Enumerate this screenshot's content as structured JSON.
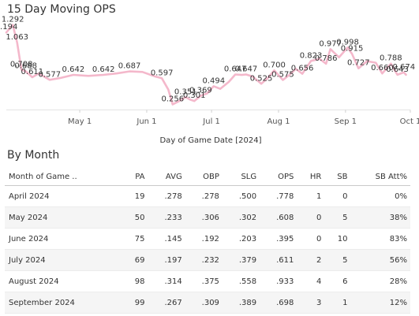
{
  "chart_data": {
    "type": "line",
    "title": "15 Day Moving OPS",
    "xlabel": "Day of Game Date [2024]",
    "ylabel": "",
    "x_tick_labels": [
      "May 1",
      "Jun 1",
      "Jul 1",
      "Aug 1",
      "Sep 1",
      "Oct 1"
    ],
    "x_tick_dates": [
      "2024-05-01",
      "2024-06-01",
      "2024-07-01",
      "2024-08-01",
      "2024-09-01",
      "2024-10-01"
    ],
    "xlim": [
      "2024-03-28",
      "2024-10-01"
    ],
    "ylim": [
      0.2,
      1.35
    ],
    "grid": false,
    "line_color": "#f4b8cb",
    "series": [
      {
        "points": [
          {
            "date": "2024-03-28",
            "value": 1.194
          },
          {
            "date": "2024-03-31",
            "value": 1.292
          },
          {
            "date": "2024-04-02",
            "value": 1.063
          },
          {
            "date": "2024-04-04",
            "value": 0.708
          },
          {
            "date": "2024-04-06",
            "value": 0.688
          },
          {
            "date": "2024-04-09",
            "value": 0.611
          },
          {
            "date": "2024-04-12",
            "value": 0.66
          },
          {
            "date": "2024-04-17",
            "value": 0.577
          },
          {
            "date": "2024-04-22",
            "value": 0.6
          },
          {
            "date": "2024-04-28",
            "value": 0.642
          },
          {
            "date": "2024-05-05",
            "value": 0.628
          },
          {
            "date": "2024-05-12",
            "value": 0.642
          },
          {
            "date": "2024-05-18",
            "value": 0.66
          },
          {
            "date": "2024-05-24",
            "value": 0.687
          },
          {
            "date": "2024-05-30",
            "value": 0.68
          },
          {
            "date": "2024-06-05",
            "value": 0.62
          },
          {
            "date": "2024-06-08",
            "value": 0.597
          },
          {
            "date": "2024-06-11",
            "value": 0.45
          },
          {
            "date": "2024-06-13",
            "value": 0.256
          },
          {
            "date": "2024-06-16",
            "value": 0.3
          },
          {
            "date": "2024-06-19",
            "value": 0.351
          },
          {
            "date": "2024-06-21",
            "value": 0.32
          },
          {
            "date": "2024-06-23",
            "value": 0.301
          },
          {
            "date": "2024-06-26",
            "value": 0.369
          },
          {
            "date": "2024-06-29",
            "value": 0.4
          },
          {
            "date": "2024-07-02",
            "value": 0.494
          },
          {
            "date": "2024-07-05",
            "value": 0.46
          },
          {
            "date": "2024-07-09",
            "value": 0.55
          },
          {
            "date": "2024-07-12",
            "value": 0.647
          },
          {
            "date": "2024-07-15",
            "value": 0.64
          },
          {
            "date": "2024-07-17",
            "value": 0.647
          },
          {
            "date": "2024-07-20",
            "value": 0.62
          },
          {
            "date": "2024-07-24",
            "value": 0.525
          },
          {
            "date": "2024-07-27",
            "value": 0.6
          },
          {
            "date": "2024-07-30",
            "value": 0.7
          },
          {
            "date": "2024-08-03",
            "value": 0.575
          },
          {
            "date": "2024-08-06",
            "value": 0.64
          },
          {
            "date": "2024-08-09",
            "value": 0.72
          },
          {
            "date": "2024-08-12",
            "value": 0.656
          },
          {
            "date": "2024-08-16",
            "value": 0.823
          },
          {
            "date": "2024-08-20",
            "value": 0.85
          },
          {
            "date": "2024-08-23",
            "value": 0.786
          },
          {
            "date": "2024-08-25",
            "value": 0.977
          },
          {
            "date": "2024-08-29",
            "value": 0.87
          },
          {
            "date": "2024-09-02",
            "value": 0.998
          },
          {
            "date": "2024-09-04",
            "value": 0.915
          },
          {
            "date": "2024-09-07",
            "value": 0.727
          },
          {
            "date": "2024-09-11",
            "value": 0.82
          },
          {
            "date": "2024-09-15",
            "value": 0.8
          },
          {
            "date": "2024-09-18",
            "value": 0.66
          },
          {
            "date": "2024-09-22",
            "value": 0.788
          },
          {
            "date": "2024-09-25",
            "value": 0.643
          },
          {
            "date": "2024-09-28",
            "value": 0.674
          },
          {
            "date": "2024-09-29",
            "value": 0.643
          }
        ]
      }
    ],
    "data_labels": [
      {
        "date": "2024-03-31",
        "value": 1.292,
        "text": "1.292"
      },
      {
        "date": "2024-03-28",
        "value": 1.194,
        "text": "1.194"
      },
      {
        "date": "2024-04-02",
        "value": 1.063,
        "text": "1.063"
      },
      {
        "date": "2024-04-04",
        "value": 0.708,
        "text": "0.708"
      },
      {
        "date": "2024-04-06",
        "value": 0.688,
        "text": "0.688"
      },
      {
        "date": "2024-04-09",
        "value": 0.611,
        "text": "0.611"
      },
      {
        "date": "2024-04-17",
        "value": 0.577,
        "text": "0.577"
      },
      {
        "date": "2024-04-28",
        "value": 0.642,
        "text": "0.642"
      },
      {
        "date": "2024-05-12",
        "value": 0.642,
        "text": "0.642"
      },
      {
        "date": "2024-05-24",
        "value": 0.687,
        "text": "0.687"
      },
      {
        "date": "2024-06-08",
        "value": 0.597,
        "text": "0.597"
      },
      {
        "date": "2024-06-13",
        "value": 0.256,
        "text": "0.256"
      },
      {
        "date": "2024-06-19",
        "value": 0.351,
        "text": "0.351"
      },
      {
        "date": "2024-06-23",
        "value": 0.301,
        "text": "0.301"
      },
      {
        "date": "2024-06-26",
        "value": 0.369,
        "text": "0.369"
      },
      {
        "date": "2024-07-02",
        "value": 0.494,
        "text": "0.494"
      },
      {
        "date": "2024-07-12",
        "value": 0.647,
        "text": "0.647"
      },
      {
        "date": "2024-07-17",
        "value": 0.647,
        "text": "0.647"
      },
      {
        "date": "2024-07-24",
        "value": 0.525,
        "text": "0.525"
      },
      {
        "date": "2024-07-30",
        "value": 0.7,
        "text": "0.700"
      },
      {
        "date": "2024-08-03",
        "value": 0.575,
        "text": "0.575"
      },
      {
        "date": "2024-08-12",
        "value": 0.656,
        "text": "0.656"
      },
      {
        "date": "2024-08-16",
        "value": 0.823,
        "text": "0.823"
      },
      {
        "date": "2024-08-23",
        "value": 0.786,
        "text": "0.786"
      },
      {
        "date": "2024-08-25",
        "value": 0.977,
        "text": "0.977"
      },
      {
        "date": "2024-09-02",
        "value": 0.998,
        "text": "0.998"
      },
      {
        "date": "2024-09-04",
        "value": 0.915,
        "text": "0.915"
      },
      {
        "date": "2024-09-07",
        "value": 0.727,
        "text": "0.727"
      },
      {
        "date": "2024-09-18",
        "value": 0.66,
        "text": "0.660"
      },
      {
        "date": "2024-09-22",
        "value": 0.788,
        "text": "0.788"
      },
      {
        "date": "2024-09-25",
        "value": 0.643,
        "text": "0.643"
      },
      {
        "date": "2024-09-28",
        "value": 0.674,
        "text": "0.674"
      }
    ]
  },
  "table": {
    "title": "By Month",
    "columns": [
      "Month of Game ..",
      "PA",
      "AVG",
      "OBP",
      "SLG",
      "OPS",
      "HR",
      "SB",
      "SB Att%"
    ],
    "rows": [
      [
        "April 2024",
        "19",
        ".278",
        ".278",
        ".500",
        ".778",
        "1",
        "0",
        "0%"
      ],
      [
        "May 2024",
        "50",
        ".233",
        ".306",
        ".302",
        ".608",
        "0",
        "5",
        "38%"
      ],
      [
        "June 2024",
        "75",
        ".145",
        ".192",
        ".203",
        ".395",
        "0",
        "10",
        "83%"
      ],
      [
        "July 2024",
        "69",
        ".197",
        ".232",
        ".379",
        ".611",
        "2",
        "5",
        "56%"
      ],
      [
        "August 2024",
        "98",
        ".314",
        ".375",
        ".558",
        ".933",
        "4",
        "6",
        "28%"
      ],
      [
        "September 2024",
        "99",
        ".267",
        ".309",
        ".389",
        ".698",
        "3",
        "1",
        "12%"
      ]
    ]
  }
}
